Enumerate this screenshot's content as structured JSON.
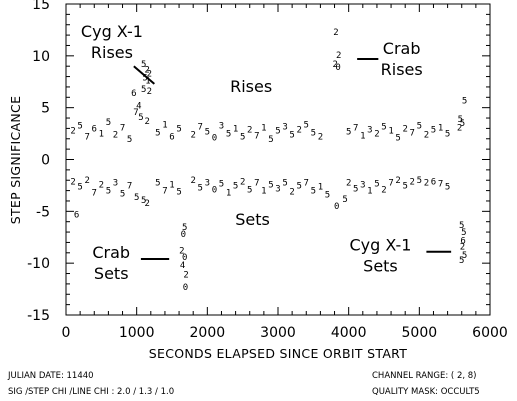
{
  "chart_data": {
    "type": "scatter",
    "xlabel": "SECONDS ELAPSED SINCE ORBIT START",
    "ylabel": "STEP SIGNIFICANCE",
    "xlim": [
      0,
      6000
    ],
    "ylim": [
      -15,
      15
    ],
    "xticks": [
      0,
      1000,
      2000,
      3000,
      4000,
      5000,
      6000
    ],
    "yticks": [
      -15,
      -10,
      -5,
      0,
      5,
      10,
      15
    ],
    "grid": false,
    "points": [
      {
        "x": 1100,
        "y": 9.2,
        "s": "5"
      },
      {
        "x": 1150,
        "y": 8.7,
        "s": "2"
      },
      {
        "x": 1180,
        "y": 8.3,
        "s": "2"
      },
      {
        "x": 1120,
        "y": 7.9,
        "s": "5"
      },
      {
        "x": 1160,
        "y": 7.6,
        "s": "1"
      },
      {
        "x": 1100,
        "y": 6.8,
        "s": "5"
      },
      {
        "x": 1180,
        "y": 6.6,
        "s": "2"
      },
      {
        "x": 960,
        "y": 6.4,
        "s": "6"
      },
      {
        "x": 1030,
        "y": 5.2,
        "s": "4"
      },
      {
        "x": 990,
        "y": 4.6,
        "s": "7"
      },
      {
        "x": 1060,
        "y": 4.1,
        "s": "5"
      },
      {
        "x": 1150,
        "y": 3.7,
        "s": "2"
      },
      {
        "x": 3820,
        "y": 12.3,
        "s": "2"
      },
      {
        "x": 3860,
        "y": 10.1,
        "s": "2"
      },
      {
        "x": 3810,
        "y": 9.2,
        "s": "2"
      },
      {
        "x": 3850,
        "y": 8.9,
        "s": "0"
      },
      {
        "x": 5640,
        "y": 5.7,
        "s": "5"
      },
      {
        "x": 5580,
        "y": 3.9,
        "s": "5"
      },
      {
        "x": 5610,
        "y": 3.5,
        "s": "5"
      },
      {
        "x": 5570,
        "y": 3.1,
        "s": "2"
      },
      {
        "x": 100,
        "y": 2.8,
        "s": "2"
      },
      {
        "x": 200,
        "y": 3.3,
        "s": "5"
      },
      {
        "x": 300,
        "y": 2.2,
        "s": "7"
      },
      {
        "x": 400,
        "y": 3.0,
        "s": "6"
      },
      {
        "x": 500,
        "y": 2.5,
        "s": "1"
      },
      {
        "x": 600,
        "y": 3.6,
        "s": "5"
      },
      {
        "x": 700,
        "y": 2.4,
        "s": "2"
      },
      {
        "x": 800,
        "y": 3.1,
        "s": "7"
      },
      {
        "x": 900,
        "y": 2.0,
        "s": "5"
      },
      {
        "x": 1300,
        "y": 2.6,
        "s": "5"
      },
      {
        "x": 1400,
        "y": 3.4,
        "s": "1"
      },
      {
        "x": 1500,
        "y": 2.2,
        "s": "6"
      },
      {
        "x": 1600,
        "y": 3.0,
        "s": "5"
      },
      {
        "x": 1800,
        "y": 2.4,
        "s": "2"
      },
      {
        "x": 1900,
        "y": 3.2,
        "s": "7"
      },
      {
        "x": 2000,
        "y": 2.7,
        "s": "5"
      },
      {
        "x": 2100,
        "y": 2.1,
        "s": "0"
      },
      {
        "x": 2200,
        "y": 3.3,
        "s": "3"
      },
      {
        "x": 2300,
        "y": 2.5,
        "s": "5"
      },
      {
        "x": 2400,
        "y": 3.0,
        "s": "1"
      },
      {
        "x": 2500,
        "y": 2.2,
        "s": "5"
      },
      {
        "x": 2600,
        "y": 2.9,
        "s": "2"
      },
      {
        "x": 2700,
        "y": 2.3,
        "s": "7"
      },
      {
        "x": 2800,
        "y": 3.1,
        "s": "1"
      },
      {
        "x": 2900,
        "y": 2.0,
        "s": "5"
      },
      {
        "x": 3000,
        "y": 2.8,
        "s": "5"
      },
      {
        "x": 3100,
        "y": 3.2,
        "s": "3"
      },
      {
        "x": 3200,
        "y": 2.4,
        "s": "5"
      },
      {
        "x": 3300,
        "y": 2.9,
        "s": "2"
      },
      {
        "x": 3400,
        "y": 3.4,
        "s": "5"
      },
      {
        "x": 3500,
        "y": 2.6,
        "s": "5"
      },
      {
        "x": 3600,
        "y": 2.2,
        "s": "2"
      },
      {
        "x": 4000,
        "y": 2.7,
        "s": "5"
      },
      {
        "x": 4100,
        "y": 3.1,
        "s": "7"
      },
      {
        "x": 4200,
        "y": 2.3,
        "s": "1"
      },
      {
        "x": 4300,
        "y": 2.9,
        "s": "3"
      },
      {
        "x": 4400,
        "y": 2.5,
        "s": "2"
      },
      {
        "x": 4500,
        "y": 3.2,
        "s": "5"
      },
      {
        "x": 4600,
        "y": 2.8,
        "s": "1"
      },
      {
        "x": 4700,
        "y": 2.1,
        "s": "5"
      },
      {
        "x": 4800,
        "y": 3.0,
        "s": "2"
      },
      {
        "x": 4900,
        "y": 2.6,
        "s": "7"
      },
      {
        "x": 5000,
        "y": 3.3,
        "s": "5"
      },
      {
        "x": 5100,
        "y": 2.4,
        "s": "2"
      },
      {
        "x": 5200,
        "y": 2.9,
        "s": "5"
      },
      {
        "x": 5300,
        "y": 3.1,
        "s": "1"
      },
      {
        "x": 5400,
        "y": 2.5,
        "s": "5"
      },
      {
        "x": 100,
        "y": -2.1,
        "s": "2"
      },
      {
        "x": 200,
        "y": -2.6,
        "s": "5"
      },
      {
        "x": 300,
        "y": -2.0,
        "s": "2"
      },
      {
        "x": 400,
        "y": -3.2,
        "s": "7"
      },
      {
        "x": 500,
        "y": -2.4,
        "s": "2"
      },
      {
        "x": 600,
        "y": -3.0,
        "s": "5"
      },
      {
        "x": 700,
        "y": -2.2,
        "s": "3"
      },
      {
        "x": 800,
        "y": -3.3,
        "s": "5"
      },
      {
        "x": 900,
        "y": -2.5,
        "s": "7"
      },
      {
        "x": 1000,
        "y": -3.6,
        "s": "5"
      },
      {
        "x": 1300,
        "y": -2.2,
        "s": "5"
      },
      {
        "x": 1400,
        "y": -3.0,
        "s": "7"
      },
      {
        "x": 1500,
        "y": -2.4,
        "s": "1"
      },
      {
        "x": 1600,
        "y": -3.1,
        "s": "5"
      },
      {
        "x": 1800,
        "y": -2.0,
        "s": "2"
      },
      {
        "x": 1900,
        "y": -2.7,
        "s": "5"
      },
      {
        "x": 2000,
        "y": -2.2,
        "s": "3"
      },
      {
        "x": 2100,
        "y": -2.9,
        "s": "0"
      },
      {
        "x": 2200,
        "y": -2.3,
        "s": "5"
      },
      {
        "x": 2300,
        "y": -3.2,
        "s": "1"
      },
      {
        "x": 2400,
        "y": -2.5,
        "s": "5"
      },
      {
        "x": 2500,
        "y": -2.1,
        "s": "2"
      },
      {
        "x": 2600,
        "y": -2.9,
        "s": "5"
      },
      {
        "x": 2700,
        "y": -2.2,
        "s": "7"
      },
      {
        "x": 2800,
        "y": -3.0,
        "s": "1"
      },
      {
        "x": 2900,
        "y": -2.4,
        "s": "5"
      },
      {
        "x": 3000,
        "y": -2.8,
        "s": "3"
      },
      {
        "x": 3100,
        "y": -2.2,
        "s": "5"
      },
      {
        "x": 3200,
        "y": -3.1,
        "s": "2"
      },
      {
        "x": 3300,
        "y": -2.5,
        "s": "5"
      },
      {
        "x": 3400,
        "y": -2.2,
        "s": "7"
      },
      {
        "x": 3500,
        "y": -3.0,
        "s": "5"
      },
      {
        "x": 3600,
        "y": -2.6,
        "s": "1"
      },
      {
        "x": 3700,
        "y": -3.4,
        "s": "5"
      },
      {
        "x": 4000,
        "y": -2.2,
        "s": "2"
      },
      {
        "x": 4100,
        "y": -2.8,
        "s": "5"
      },
      {
        "x": 4200,
        "y": -2.4,
        "s": "3"
      },
      {
        "x": 4300,
        "y": -3.0,
        "s": "1"
      },
      {
        "x": 4400,
        "y": -2.3,
        "s": "5"
      },
      {
        "x": 4500,
        "y": -2.9,
        "s": "2"
      },
      {
        "x": 4600,
        "y": -2.2,
        "s": "7"
      },
      {
        "x": 4700,
        "y": -2.0,
        "s": "2"
      },
      {
        "x": 4800,
        "y": -2.5,
        "s": "5"
      },
      {
        "x": 4900,
        "y": -2.1,
        "s": "2"
      },
      {
        "x": 5000,
        "y": -2.0,
        "s": "5"
      },
      {
        "x": 5100,
        "y": -2.2,
        "s": "2"
      },
      {
        "x": 5200,
        "y": -2.1,
        "s": "6"
      },
      {
        "x": 5300,
        "y": -2.3,
        "s": "7"
      },
      {
        "x": 5400,
        "y": -2.6,
        "s": "5"
      },
      {
        "x": 150,
        "y": -5.3,
        "s": "6"
      },
      {
        "x": 1100,
        "y": -3.9,
        "s": "5"
      },
      {
        "x": 1150,
        "y": -4.2,
        "s": "2"
      },
      {
        "x": 1680,
        "y": -6.5,
        "s": "5"
      },
      {
        "x": 1660,
        "y": -7.2,
        "s": "0"
      },
      {
        "x": 1640,
        "y": -8.8,
        "s": "2"
      },
      {
        "x": 1680,
        "y": -9.4,
        "s": "0"
      },
      {
        "x": 1650,
        "y": -10.2,
        "s": "4"
      },
      {
        "x": 1700,
        "y": -11.1,
        "s": "2"
      },
      {
        "x": 1690,
        "y": -12.3,
        "s": "0"
      },
      {
        "x": 3830,
        "y": -4.5,
        "s": "0"
      },
      {
        "x": 3950,
        "y": -3.8,
        "s": "5"
      },
      {
        "x": 5600,
        "y": -6.3,
        "s": "5"
      },
      {
        "x": 5630,
        "y": -7.0,
        "s": "5"
      },
      {
        "x": 5620,
        "y": -7.8,
        "s": "6"
      },
      {
        "x": 5610,
        "y": -8.4,
        "s": "2"
      },
      {
        "x": 5640,
        "y": -9.2,
        "s": "5"
      },
      {
        "x": 5600,
        "y": -9.7,
        "s": "5"
      }
    ],
    "annotations": [
      {
        "id": "cyg-rises",
        "lines": [
          "Cyg X-1",
          "Rises"
        ],
        "x": 650,
        "y": 11.8
      },
      {
        "id": "crab-rises",
        "lines": [
          "Crab",
          "Rises"
        ],
        "x": 4750,
        "y": 10.2
      },
      {
        "id": "rises",
        "lines": [
          "Rises"
        ],
        "x": 2620,
        "y": 6.5
      },
      {
        "id": "sets",
        "lines": [
          "Sets"
        ],
        "x": 2640,
        "y": -6.3
      },
      {
        "id": "crab-sets",
        "lines": [
          "Crab",
          "Sets"
        ],
        "x": 640,
        "y": -9.5
      },
      {
        "id": "cyg-sets",
        "lines": [
          "Cyg X-1",
          "Sets"
        ],
        "x": 4450,
        "y": -8.8
      }
    ],
    "pointer_lines": [
      {
        "x1": 960,
        "y1": 9.0,
        "x2": 1250,
        "y2": 7.3
      },
      {
        "x1": 4120,
        "y1": 9.7,
        "x2": 4420,
        "y2": 9.7
      },
      {
        "x1": 1060,
        "y1": -9.6,
        "x2": 1460,
        "y2": -9.6
      },
      {
        "x1": 5100,
        "y1": -8.9,
        "x2": 5450,
        "y2": -8.9
      }
    ]
  },
  "footer": {
    "julian_date": "JULIAN DATE: 11440",
    "sig_line": "SIG /STEP CHI /LINE CHI :  2.0 / 1.3 / 1.0",
    "channel_range": "CHANNEL RANGE: ( 2, 8)",
    "quality_mask": "QUALITY MASK: OCCULT5"
  }
}
